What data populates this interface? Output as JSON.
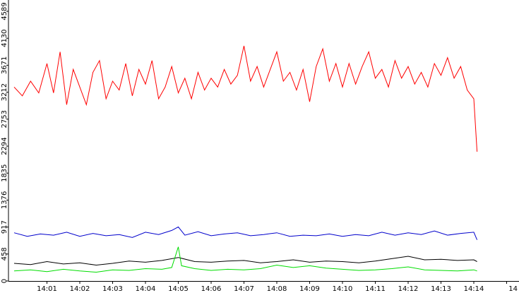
{
  "chart_data": {
    "type": "line",
    "title": "",
    "xlabel": "",
    "ylabel": "",
    "x_ticks": [
      "14:01",
      "14:02",
      "14:03",
      "14:04",
      "14:05",
      "14:06",
      "14:07",
      "14:08",
      "14:09",
      "14:10",
      "14:11",
      "14:12",
      "14:13",
      "14:14",
      "14"
    ],
    "y_ticks": [
      "0",
      "458",
      "917",
      "1376",
      "1835",
      "2294",
      "2753",
      "3212",
      "3671",
      "4130",
      "4589"
    ],
    "ylim": [
      0,
      4589
    ],
    "xlim": [
      0,
      14.1
    ],
    "grid": false,
    "legend": "none",
    "series": [
      {
        "color": "#ff0000",
        "points": [
          [
            0.0,
            3300
          ],
          [
            0.25,
            3150
          ],
          [
            0.5,
            3400
          ],
          [
            0.75,
            3200
          ],
          [
            1.0,
            3700
          ],
          [
            1.2,
            3200
          ],
          [
            1.4,
            3900
          ],
          [
            1.6,
            3000
          ],
          [
            1.8,
            3600
          ],
          [
            2.0,
            3300
          ],
          [
            2.2,
            3000
          ],
          [
            2.4,
            3550
          ],
          [
            2.6,
            3750
          ],
          [
            2.8,
            3100
          ],
          [
            3.0,
            3400
          ],
          [
            3.2,
            3250
          ],
          [
            3.4,
            3700
          ],
          [
            3.6,
            3150
          ],
          [
            3.8,
            3600
          ],
          [
            4.0,
            3350
          ],
          [
            4.2,
            3750
          ],
          [
            4.4,
            3100
          ],
          [
            4.6,
            3300
          ],
          [
            4.8,
            3650
          ],
          [
            5.0,
            3200
          ],
          [
            5.2,
            3450
          ],
          [
            5.4,
            3100
          ],
          [
            5.6,
            3550
          ],
          [
            5.8,
            3250
          ],
          [
            6.0,
            3450
          ],
          [
            6.2,
            3300
          ],
          [
            6.4,
            3600
          ],
          [
            6.6,
            3350
          ],
          [
            6.8,
            3500
          ],
          [
            7.0,
            4000
          ],
          [
            7.2,
            3400
          ],
          [
            7.4,
            3650
          ],
          [
            7.6,
            3300
          ],
          [
            7.8,
            3600
          ],
          [
            8.0,
            3900
          ],
          [
            8.2,
            3400
          ],
          [
            8.4,
            3550
          ],
          [
            8.6,
            3250
          ],
          [
            8.8,
            3600
          ],
          [
            9.0,
            3050
          ],
          [
            9.2,
            3650
          ],
          [
            9.4,
            3950
          ],
          [
            9.6,
            3400
          ],
          [
            9.8,
            3700
          ],
          [
            10.0,
            3300
          ],
          [
            10.2,
            3700
          ],
          [
            10.4,
            3350
          ],
          [
            10.6,
            3650
          ],
          [
            10.8,
            3900
          ],
          [
            11.0,
            3450
          ],
          [
            11.2,
            3600
          ],
          [
            11.4,
            3300
          ],
          [
            11.6,
            3750
          ],
          [
            11.8,
            3450
          ],
          [
            12.0,
            3650
          ],
          [
            12.2,
            3350
          ],
          [
            12.4,
            3550
          ],
          [
            12.6,
            3300
          ],
          [
            12.8,
            3700
          ],
          [
            13.0,
            3500
          ],
          [
            13.2,
            3800
          ],
          [
            13.4,
            3450
          ],
          [
            13.6,
            3650
          ],
          [
            13.8,
            3250
          ],
          [
            14.0,
            3100
          ],
          [
            14.1,
            2200
          ]
        ]
      },
      {
        "color": "#0000cc",
        "points": [
          [
            0.0,
            820
          ],
          [
            0.4,
            760
          ],
          [
            0.8,
            800
          ],
          [
            1.2,
            780
          ],
          [
            1.6,
            830
          ],
          [
            2.0,
            760
          ],
          [
            2.4,
            810
          ],
          [
            2.8,
            770
          ],
          [
            3.2,
            790
          ],
          [
            3.6,
            740
          ],
          [
            4.0,
            830
          ],
          [
            4.4,
            790
          ],
          [
            4.8,
            860
          ],
          [
            5.0,
            920
          ],
          [
            5.2,
            780
          ],
          [
            5.6,
            840
          ],
          [
            6.0,
            770
          ],
          [
            6.4,
            800
          ],
          [
            6.8,
            820
          ],
          [
            7.2,
            770
          ],
          [
            7.6,
            790
          ],
          [
            8.0,
            820
          ],
          [
            8.4,
            760
          ],
          [
            8.8,
            780
          ],
          [
            9.2,
            770
          ],
          [
            9.6,
            800
          ],
          [
            10.0,
            760
          ],
          [
            10.4,
            790
          ],
          [
            10.8,
            770
          ],
          [
            11.2,
            830
          ],
          [
            11.6,
            780
          ],
          [
            12.0,
            820
          ],
          [
            12.4,
            790
          ],
          [
            12.8,
            850
          ],
          [
            13.2,
            780
          ],
          [
            13.6,
            810
          ],
          [
            14.0,
            830
          ],
          [
            14.1,
            700
          ]
        ]
      },
      {
        "color": "#000000",
        "points": [
          [
            0.0,
            300
          ],
          [
            0.5,
            280
          ],
          [
            1.0,
            330
          ],
          [
            1.5,
            290
          ],
          [
            2.0,
            310
          ],
          [
            2.5,
            270
          ],
          [
            3.0,
            300
          ],
          [
            3.5,
            340
          ],
          [
            4.0,
            320
          ],
          [
            4.5,
            350
          ],
          [
            5.0,
            400
          ],
          [
            5.5,
            330
          ],
          [
            6.0,
            320
          ],
          [
            6.5,
            340
          ],
          [
            7.0,
            350
          ],
          [
            7.5,
            310
          ],
          [
            8.0,
            330
          ],
          [
            8.5,
            360
          ],
          [
            9.0,
            320
          ],
          [
            9.5,
            340
          ],
          [
            10.0,
            330
          ],
          [
            10.5,
            310
          ],
          [
            11.0,
            340
          ],
          [
            11.5,
            380
          ],
          [
            12.0,
            420
          ],
          [
            12.5,
            360
          ],
          [
            13.0,
            370
          ],
          [
            13.5,
            350
          ],
          [
            14.0,
            360
          ],
          [
            14.1,
            330
          ]
        ]
      },
      {
        "color": "#00dd00",
        "points": [
          [
            0.0,
            170
          ],
          [
            0.5,
            190
          ],
          [
            1.0,
            160
          ],
          [
            1.5,
            200
          ],
          [
            2.0,
            170
          ],
          [
            2.5,
            150
          ],
          [
            3.0,
            190
          ],
          [
            3.5,
            180
          ],
          [
            4.0,
            210
          ],
          [
            4.5,
            200
          ],
          [
            4.8,
            230
          ],
          [
            5.0,
            580
          ],
          [
            5.1,
            260
          ],
          [
            5.5,
            210
          ],
          [
            6.0,
            180
          ],
          [
            6.5,
            200
          ],
          [
            7.0,
            190
          ],
          [
            7.5,
            210
          ],
          [
            8.0,
            270
          ],
          [
            8.5,
            230
          ],
          [
            9.0,
            260
          ],
          [
            9.5,
            220
          ],
          [
            10.0,
            200
          ],
          [
            10.5,
            180
          ],
          [
            11.0,
            190
          ],
          [
            11.5,
            210
          ],
          [
            12.0,
            240
          ],
          [
            12.5,
            190
          ],
          [
            13.0,
            180
          ],
          [
            13.5,
            170
          ],
          [
            14.0,
            190
          ],
          [
            14.1,
            170
          ]
        ]
      }
    ]
  }
}
